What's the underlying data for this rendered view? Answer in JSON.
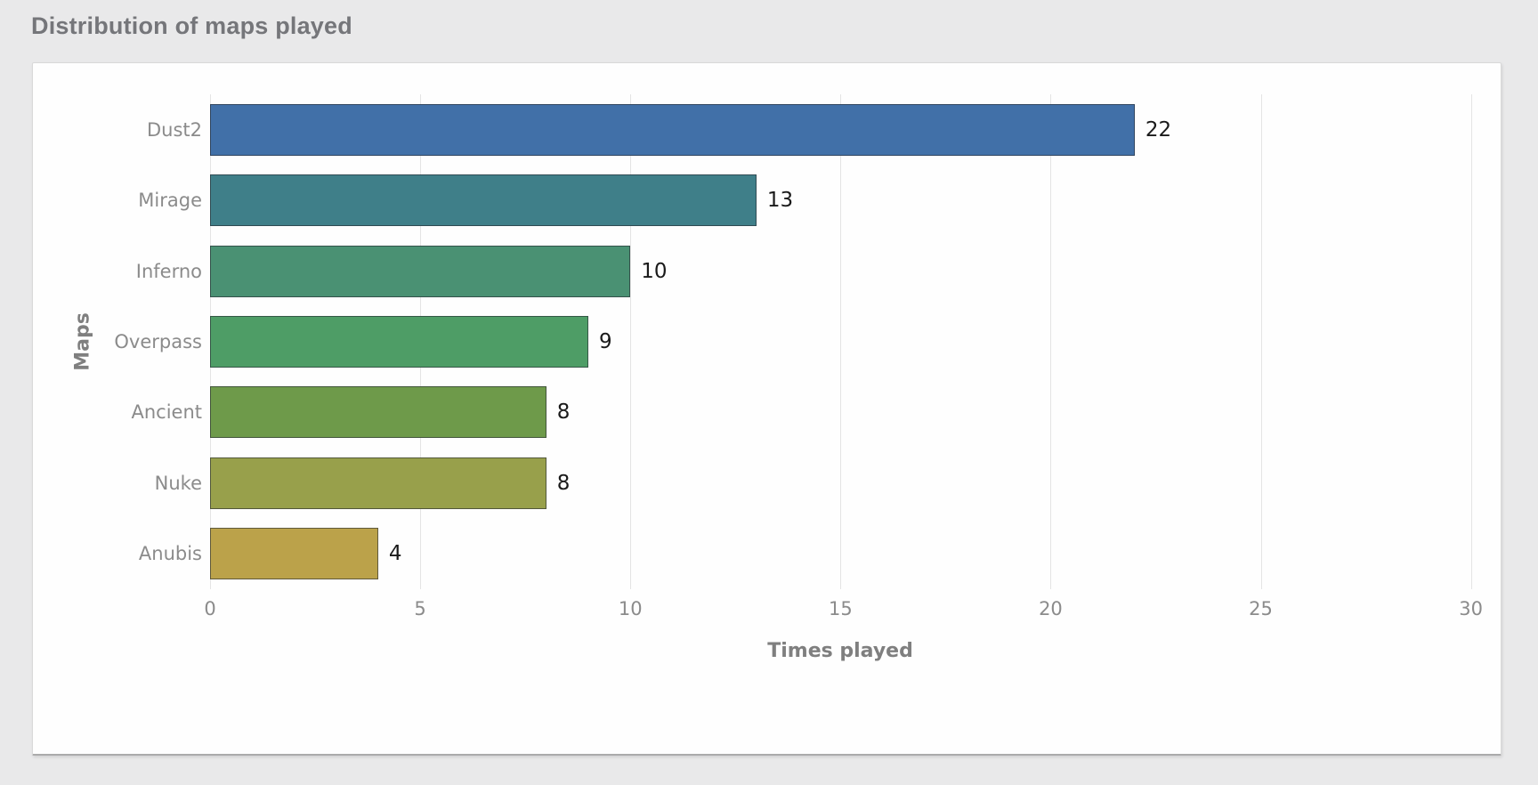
{
  "page": {
    "background_color": "#e9e9ea",
    "title": "Distribution of maps played",
    "title_color": "#75767a"
  },
  "chart_data": {
    "type": "bar",
    "orientation": "horizontal",
    "xlabel": "Times played",
    "ylabel": "Maps",
    "categories": [
      "Dust2",
      "Mirage",
      "Inferno",
      "Overpass",
      "Ancient",
      "Nuke",
      "Anubis"
    ],
    "values": [
      22,
      13,
      10,
      9,
      8,
      8,
      4
    ],
    "value_labels": [
      "22",
      "13",
      "10",
      "9",
      "8",
      "8",
      "4"
    ],
    "bar_colors": [
      "#4170a8",
      "#3f7f89",
      "#4a9173",
      "#4e9d66",
      "#6e9a4a",
      "#98a04b",
      "#bba24a"
    ],
    "bar_edge_color": "rgba(38,44,50,0.62)",
    "x_ticks": [
      0,
      5,
      10,
      15,
      20,
      25,
      30
    ],
    "x_tick_labels": [
      "0",
      "5",
      "10",
      "15",
      "20",
      "25",
      "30"
    ],
    "xlim": [
      0,
      30.6
    ],
    "grid": "vertical",
    "grid_color": "#e4e4e4",
    "plot_background": "#ffffff",
    "legend": "none"
  }
}
